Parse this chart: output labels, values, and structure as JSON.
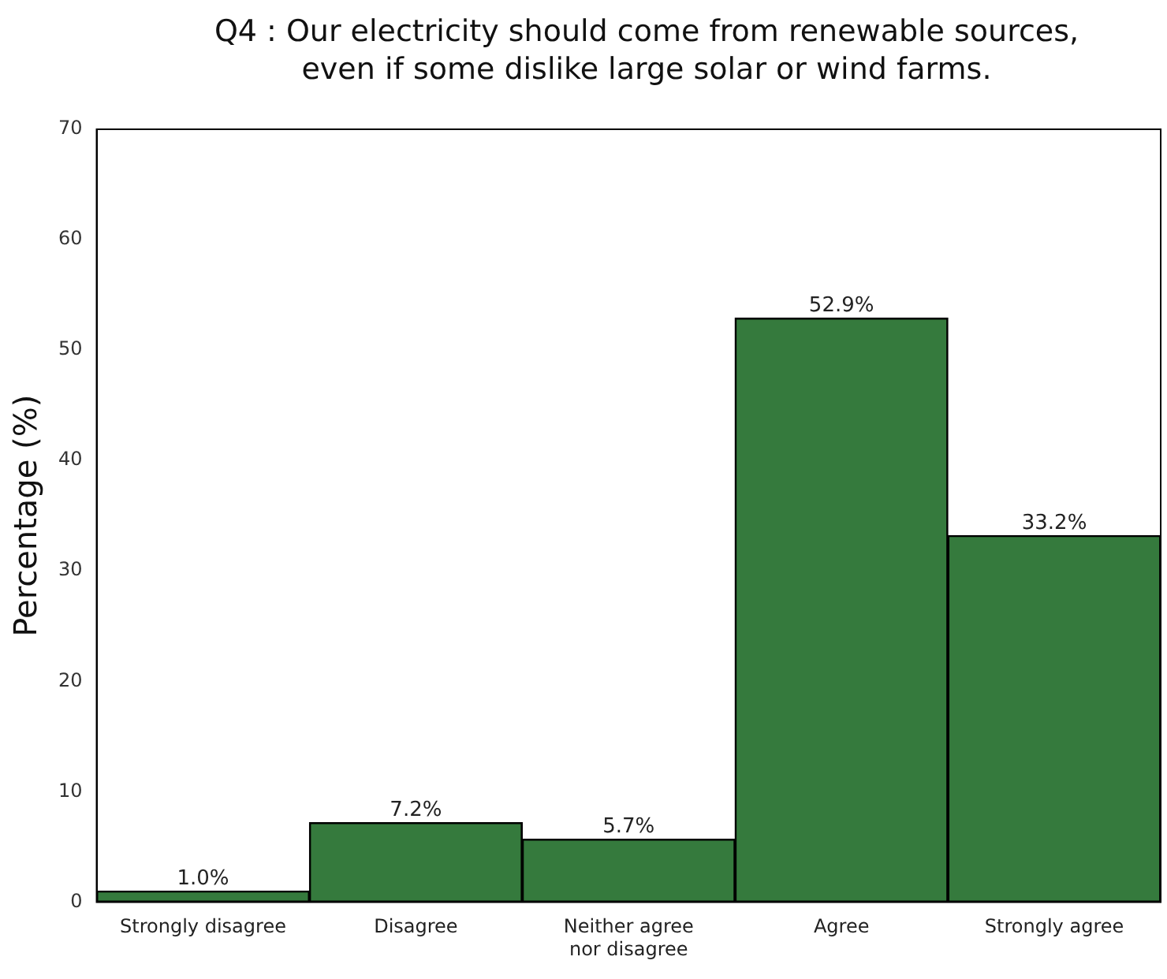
{
  "chart_data": {
    "type": "bar",
    "title": "Q4 : Our electricity should come from renewable sources,\neven if some dislike large solar or wind farms.",
    "ylabel": "Percentage (%)",
    "categories": [
      "Strongly disagree",
      "Disagree",
      "Neither agree\nnor disagree",
      "Agree",
      "Strongly agree"
    ],
    "values": [
      1.0,
      7.2,
      5.7,
      52.9,
      33.2
    ],
    "color": "#357a3d",
    "value_labels": [
      "1.0%",
      "7.2%",
      "5.7%",
      "52.9%",
      "33.2%"
    ],
    "ylim": [
      0,
      70
    ],
    "yticks": [
      0,
      10,
      20,
      30,
      40,
      50,
      60,
      70
    ],
    "grid": false,
    "legend": false
  }
}
